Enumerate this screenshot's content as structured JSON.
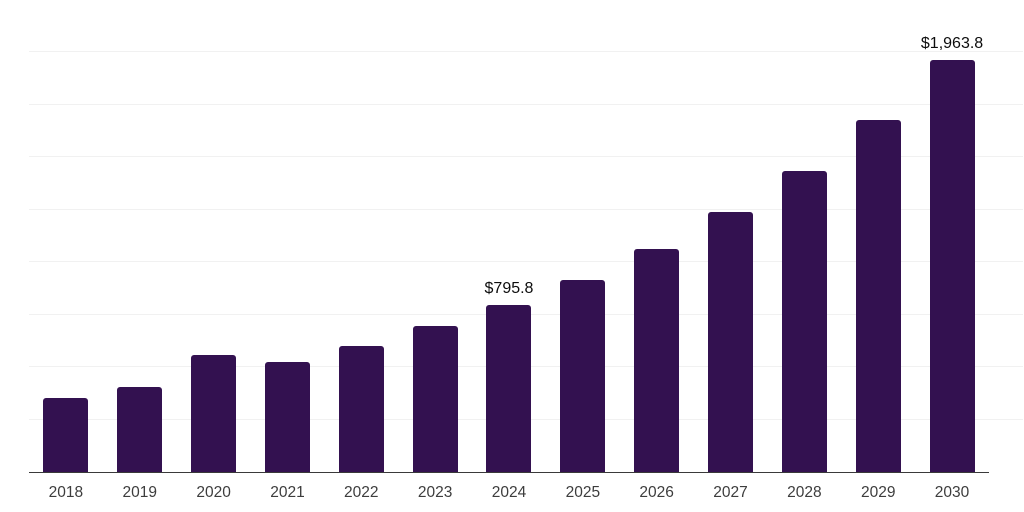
{
  "chart_data": {
    "type": "bar",
    "title": "",
    "xlabel": "",
    "ylabel": "",
    "categories": [
      "2018",
      "2019",
      "2020",
      "2021",
      "2022",
      "2023",
      "2024",
      "2025",
      "2026",
      "2027",
      "2028",
      "2029",
      "2030"
    ],
    "values": [
      355,
      405,
      560,
      525,
      600,
      695,
      795.8,
      916,
      1064,
      1238,
      1437,
      1679,
      1963.8
    ],
    "bar_labels": [
      "",
      "",
      "",
      "",
      "",
      "",
      "$795.8",
      "",
      "",
      "",
      "",
      "",
      "$1,963.8"
    ],
    "ylim": [
      0,
      2250
    ],
    "gridline_step": 250,
    "grid": true,
    "legend": false,
    "y_axis_tick_labels_visible": false,
    "colors": {
      "bar": "#331150",
      "axis_line": "#3a3a3a",
      "gridline": "#f1f1f1",
      "tick_label": "#3d3d3d",
      "data_label": "#0d0d0d",
      "background": "#ffffff"
    }
  }
}
